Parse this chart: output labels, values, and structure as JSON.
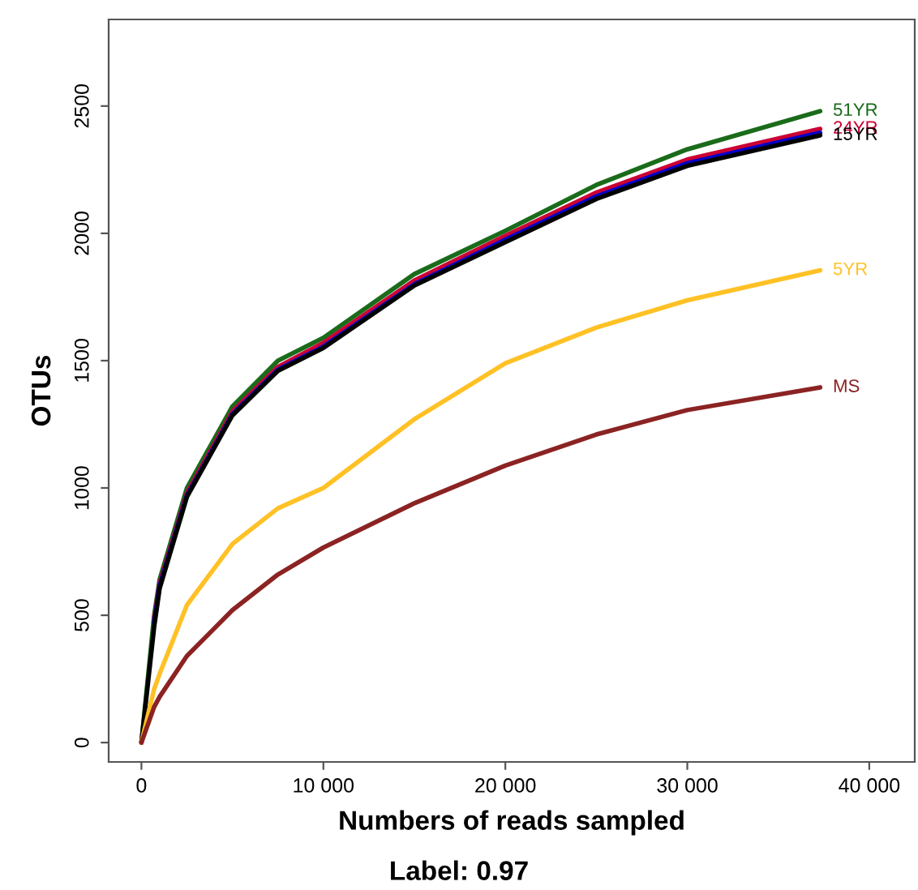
{
  "chart_data": {
    "type": "line",
    "xlabel": "Numbers of reads sampled",
    "ylabel": "OTUs",
    "annotations": [
      "Label: 0.97"
    ],
    "xlim": [
      -1800,
      42500
    ],
    "ylim": [
      -76,
      2840
    ],
    "xticks": [
      0,
      {
        "value": 10000,
        "label": "10 000"
      },
      {
        "value": 20000,
        "label": "20 000"
      },
      {
        "value": 30000,
        "label": "30 000"
      },
      {
        "value": 40000,
        "label": "40 000"
      }
    ],
    "yticks": [
      0,
      500,
      1000,
      1500,
      2000,
      2500
    ],
    "grid": false,
    "legend": false,
    "marker": "none",
    "line_style": "solid",
    "x": [
      0,
      700,
      1000,
      2500,
      5000,
      7500,
      10000,
      15000,
      20000,
      25000,
      30000,
      37300
    ],
    "series": [
      {
        "name": "51YR",
        "color": "#1a6b1a",
        "values": [
          0,
          500,
          640,
          1000,
          1320,
          1500,
          1590,
          1840,
          2010,
          2190,
          2330,
          2480
        ]
      },
      {
        "name": "24YR",
        "color": "#cc0033",
        "values": [
          null,
          485,
          625,
          980,
          1300,
          1475,
          1570,
          1815,
          1990,
          2160,
          2290,
          2410
        ]
      },
      {
        "color": "#0000cc",
        "values": [
          null,
          470,
          615,
          970,
          1290,
          1465,
          1555,
          1800,
          1975,
          2145,
          2275,
          2395
        ]
      },
      {
        "name": "15YR",
        "color": "#000000",
        "values": [
          0,
          455,
          605,
          965,
          1285,
          1460,
          1550,
          1795,
          1965,
          2135,
          2265,
          2385
        ]
      },
      {
        "name": "5YR",
        "color": "#ffc125",
        "values": [
          0,
          210,
          270,
          540,
          780,
          920,
          1000,
          1270,
          1490,
          1630,
          1737,
          1855
        ]
      },
      {
        "name": "MS",
        "color": "#8b2323",
        "values": [
          0,
          140,
          180,
          340,
          520,
          660,
          766,
          940,
          1088,
          1210,
          1306,
          1395
        ]
      }
    ]
  }
}
